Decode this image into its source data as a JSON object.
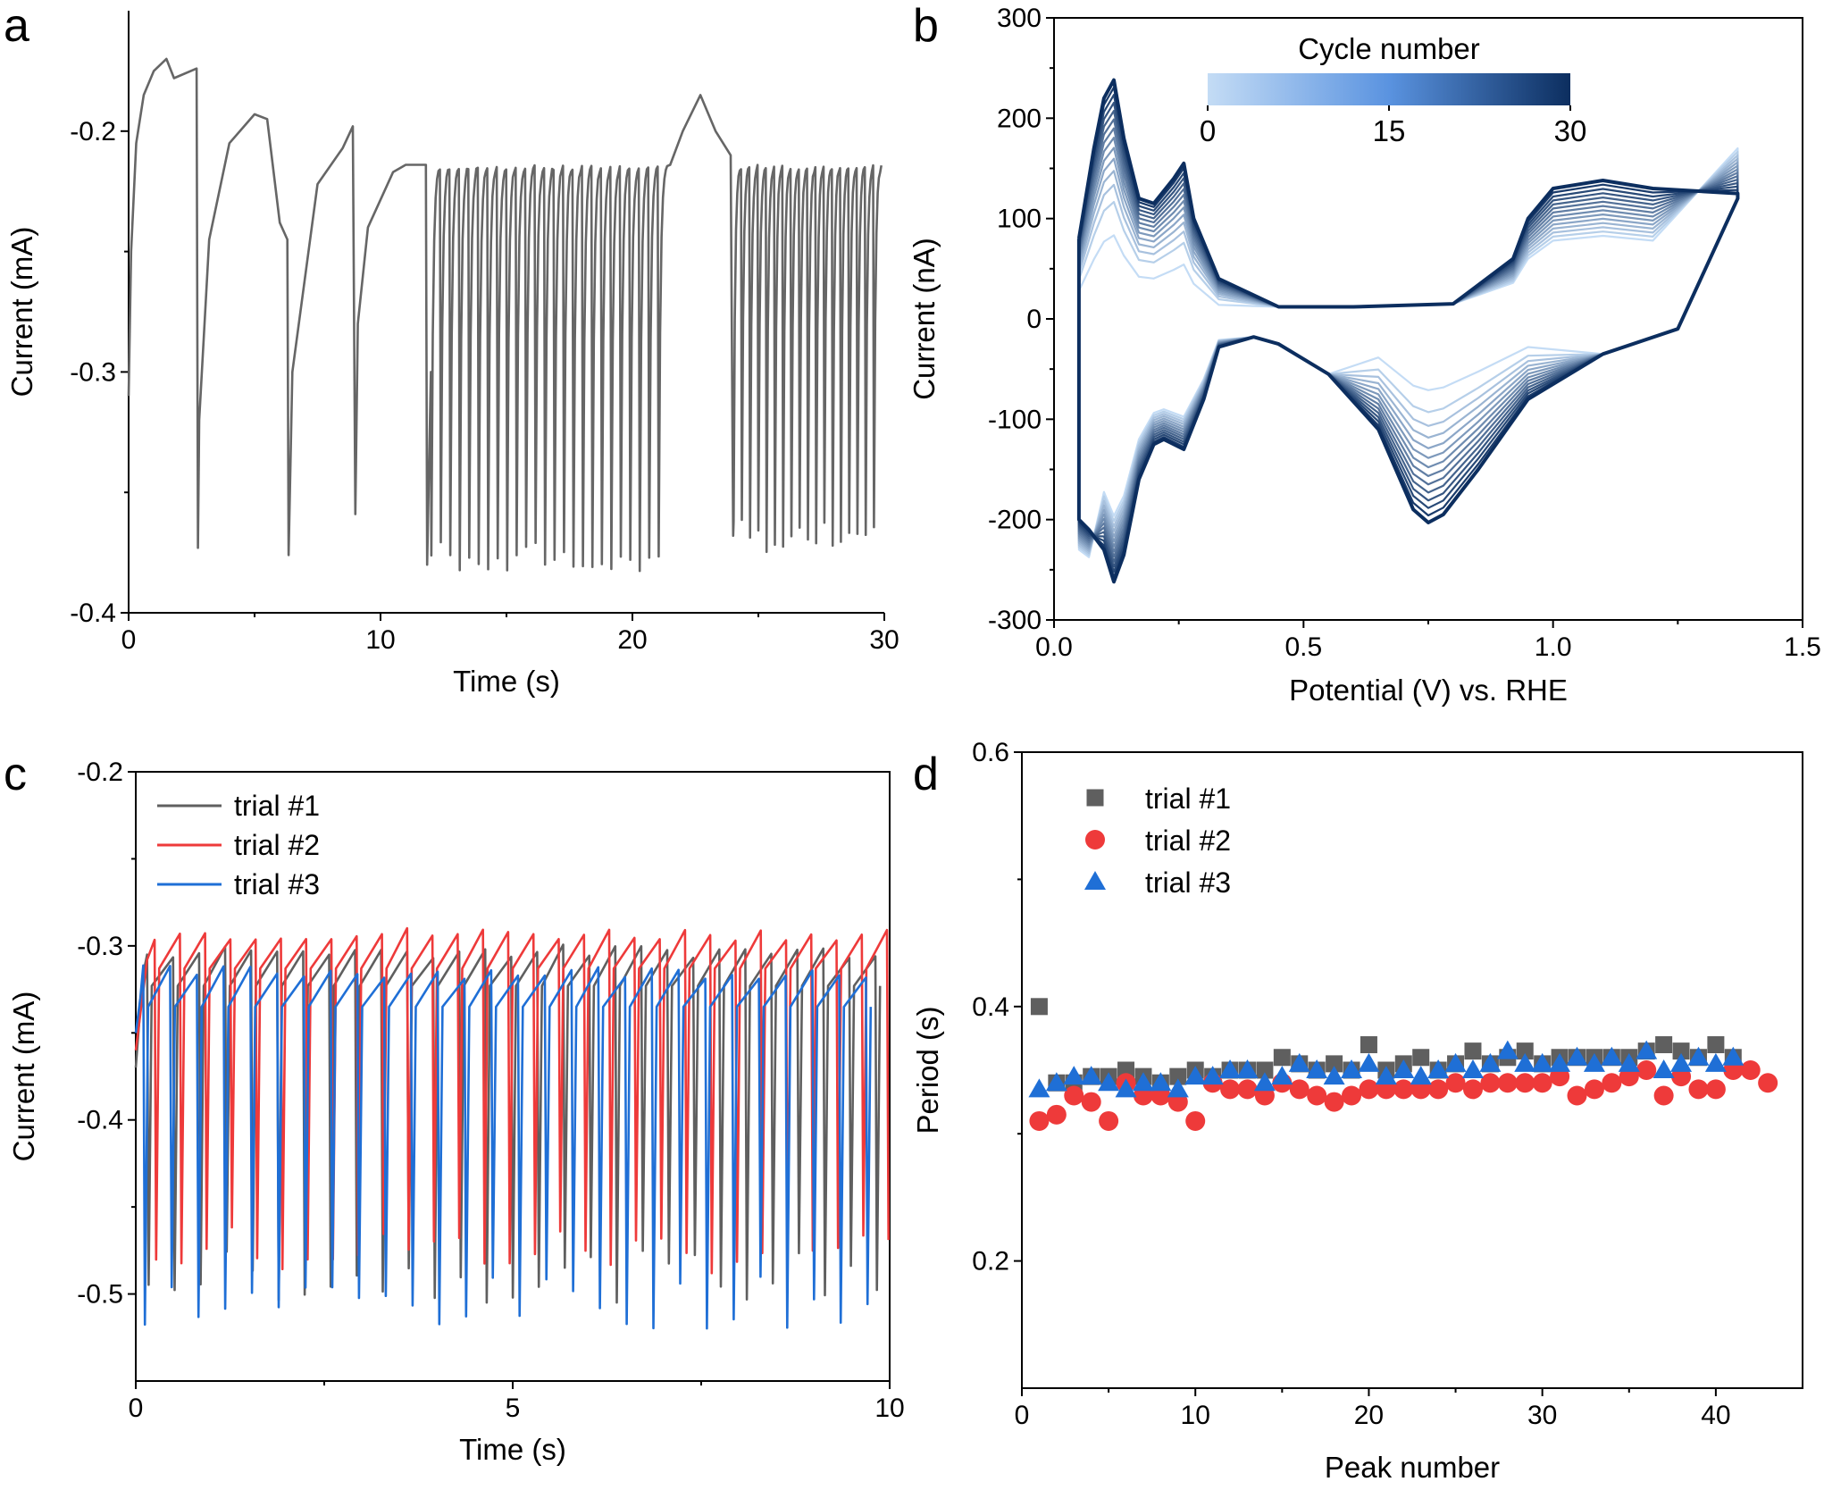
{
  "chart_data": [
    {
      "panel": "a",
      "type": "line",
      "xlabel": "Time (s)",
      "ylabel": "Current (mA)",
      "xlim": [
        0,
        30
      ],
      "ylim": [
        -0.4,
        -0.15
      ],
      "x_ticks": [
        0,
        10,
        20,
        30
      ],
      "y_ticks": [
        -0.2,
        -0.3,
        -0.4
      ],
      "x_tick_labels": [
        "0",
        "10",
        "20",
        "30"
      ],
      "y_tick_labels": [
        "-0.2",
        "-0.3",
        "-0.4"
      ],
      "series": [
        {
          "color": "#666666",
          "description": "current oscillation trace",
          "x": [
            0,
            0.1,
            0.3,
            0.6,
            1.0,
            1.5,
            1.8,
            2.7,
            2.75,
            2.8,
            3.2,
            4.0,
            5.0,
            5.5,
            6.0,
            6.3,
            6.35,
            6.5,
            7.5,
            8.5,
            8.9,
            9.0,
            9.1,
            9.5,
            10.5,
            11.0,
            11.8,
            11.85,
            12.0
          ],
          "y": [
            -0.31,
            -0.25,
            -0.205,
            -0.185,
            -0.175,
            -0.17,
            -0.178,
            -0.174,
            -0.373,
            -0.32,
            -0.245,
            -0.205,
            -0.193,
            -0.195,
            -0.238,
            -0.245,
            -0.376,
            -0.3,
            -0.222,
            -0.207,
            -0.198,
            -0.359,
            -0.28,
            -0.24,
            -0.217,
            -0.214,
            -0.214,
            -0.38,
            -0.3
          ],
          "oscillations": [
            {
              "start": 12.0,
              "end": 21.4,
              "count": 25,
              "top": -0.214,
              "bottom": -0.375
            },
            {
              "start": 24.0,
              "end": 29.9,
              "count": 18,
              "top": -0.214,
              "bottom": -0.367
            }
          ],
          "excursion": {
            "x": [
              21.5,
              22.0,
              22.7,
              23.3,
              23.9,
              24.0
            ],
            "y": [
              -0.214,
              -0.2,
              -0.185,
              -0.2,
              -0.21,
              -0.368
            ]
          }
        }
      ]
    },
    {
      "panel": "b",
      "type": "line",
      "xlabel": "Potential (V) vs. RHE",
      "ylabel": "Current (nA)",
      "xlim": [
        0,
        1.5
      ],
      "ylim": [
        -300,
        300
      ],
      "x_ticks": [
        0,
        0.5,
        1.0,
        1.5
      ],
      "y_ticks": [
        -300,
        -200,
        -100,
        0,
        100,
        200,
        300
      ],
      "x_tick_labels": [
        "0.0",
        "0.5",
        "1.0",
        "1.5"
      ],
      "y_tick_labels": [
        "-300",
        "-200",
        "-100",
        "0",
        "100",
        "200",
        "300"
      ],
      "colorbar": {
        "title": "Cycle number",
        "min": 0,
        "max": 30,
        "tick_labels": [
          "0",
          "15",
          "30"
        ],
        "color_start": "#c4dcf5",
        "color_end": "#0c2e5f"
      },
      "series": [
        {
          "name": "final cycle (30)",
          "anodic_x": [
            0.05,
            0.08,
            0.1,
            0.12,
            0.14,
            0.17,
            0.2,
            0.24,
            0.26,
            0.28,
            0.33,
            0.45,
            0.6,
            0.8,
            0.92,
            0.95,
            1.0,
            1.1,
            1.2,
            1.37
          ],
          "anodic_y": [
            80,
            170,
            220,
            238,
            180,
            120,
            115,
            140,
            155,
            100,
            40,
            12,
            12,
            15,
            60,
            100,
            130,
            138,
            130,
            125
          ],
          "cathodic_x": [
            1.37,
            1.25,
            1.1,
            0.95,
            0.85,
            0.78,
            0.75,
            0.72,
            0.65,
            0.55,
            0.45,
            0.4,
            0.33,
            0.3,
            0.26,
            0.22,
            0.2,
            0.17,
            0.14,
            0.12,
            0.1,
            0.07,
            0.05
          ],
          "cathodic_y": [
            120,
            -10,
            -35,
            -80,
            -150,
            -195,
            -203,
            -190,
            -110,
            -55,
            -25,
            -18,
            -28,
            -80,
            -130,
            -120,
            -125,
            -160,
            -235,
            -262,
            -230,
            -210,
            -200
          ]
        }
      ]
    },
    {
      "panel": "c",
      "type": "line",
      "xlabel": "Time (s)",
      "ylabel": "Current (mA)",
      "xlim": [
        0,
        10
      ],
      "ylim": [
        -0.55,
        -0.2
      ],
      "x_ticks": [
        0,
        5,
        10
      ],
      "y_ticks": [
        -0.2,
        -0.3,
        -0.4,
        -0.5
      ],
      "x_tick_labels": [
        "0",
        "5",
        "10"
      ],
      "y_tick_labels": [
        "-0.2",
        "-0.3",
        "-0.4",
        "-0.5"
      ],
      "series": [
        {
          "name": "trial #1",
          "color": "#5f5f5f",
          "start": 0.15,
          "period": 0.345,
          "top": -0.303,
          "bottom": -0.49
        },
        {
          "name": "trial #2",
          "color": "#ee3a3a",
          "start": 0.25,
          "period": 0.335,
          "top": -0.293,
          "bottom": -0.475
        },
        {
          "name": "trial #3",
          "color": "#1f6fd6",
          "start": 0.1,
          "period": 0.355,
          "top": -0.315,
          "bottom": -0.505
        }
      ]
    },
    {
      "panel": "d",
      "type": "scatter",
      "xlabel": "Peak number",
      "ylabel": "Period (s)",
      "xlim": [
        0,
        45
      ],
      "ylim": [
        0.1,
        0.6
      ],
      "x_ticks": [
        0,
        10,
        20,
        30,
        40
      ],
      "y_ticks": [
        0.2,
        0.4,
        0.6
      ],
      "x_tick_labels": [
        "0",
        "10",
        "20",
        "30",
        "40"
      ],
      "y_tick_labels": [
        "0.2",
        "0.4",
        "0.6"
      ],
      "series": [
        {
          "name": "trial #1",
          "color": "#5f5f5f",
          "marker": "square",
          "x": [
            1,
            2,
            3,
            4,
            5,
            6,
            7,
            8,
            9,
            10,
            11,
            12,
            13,
            14,
            15,
            16,
            17,
            18,
            19,
            20,
            21,
            22,
            23,
            24,
            25,
            26,
            27,
            28,
            29,
            30,
            31,
            32,
            33,
            34,
            35,
            36,
            37,
            38,
            39,
            40,
            41
          ],
          "y": [
            0.4,
            0.34,
            0.34,
            0.345,
            0.345,
            0.35,
            0.345,
            0.34,
            0.345,
            0.35,
            0.345,
            0.35,
            0.35,
            0.35,
            0.36,
            0.355,
            0.35,
            0.355,
            0.35,
            0.37,
            0.35,
            0.355,
            0.36,
            0.35,
            0.355,
            0.365,
            0.355,
            0.36,
            0.365,
            0.355,
            0.36,
            0.36,
            0.36,
            0.36,
            0.36,
            0.365,
            0.37,
            0.365,
            0.36,
            0.37,
            0.36
          ]
        },
        {
          "name": "trial #2",
          "color": "#ee3a3a",
          "marker": "circle",
          "x": [
            1,
            2,
            3,
            4,
            5,
            6,
            7,
            8,
            9,
            10,
            11,
            12,
            13,
            14,
            15,
            16,
            17,
            18,
            19,
            20,
            21,
            22,
            23,
            24,
            25,
            26,
            27,
            28,
            29,
            30,
            31,
            32,
            33,
            34,
            35,
            36,
            37,
            38,
            39,
            40,
            41,
            42,
            43
          ],
          "y": [
            0.31,
            0.315,
            0.33,
            0.325,
            0.31,
            0.34,
            0.33,
            0.33,
            0.325,
            0.31,
            0.34,
            0.335,
            0.335,
            0.33,
            0.34,
            0.335,
            0.33,
            0.325,
            0.33,
            0.335,
            0.335,
            0.335,
            0.335,
            0.335,
            0.34,
            0.335,
            0.34,
            0.34,
            0.34,
            0.34,
            0.345,
            0.33,
            0.335,
            0.34,
            0.345,
            0.35,
            0.33,
            0.345,
            0.335,
            0.335,
            0.35,
            0.35,
            0.34
          ]
        },
        {
          "name": "trial #3",
          "color": "#1f6fd6",
          "marker": "triangle",
          "x": [
            1,
            2,
            3,
            4,
            5,
            6,
            7,
            8,
            9,
            10,
            11,
            12,
            13,
            14,
            15,
            16,
            17,
            18,
            19,
            20,
            21,
            22,
            23,
            24,
            25,
            26,
            27,
            28,
            29,
            30,
            31,
            32,
            33,
            34,
            35,
            36,
            37,
            38,
            39,
            40,
            41
          ],
          "y": [
            0.335,
            0.34,
            0.345,
            0.345,
            0.34,
            0.335,
            0.34,
            0.34,
            0.335,
            0.345,
            0.345,
            0.35,
            0.35,
            0.34,
            0.345,
            0.355,
            0.35,
            0.345,
            0.35,
            0.355,
            0.345,
            0.35,
            0.345,
            0.35,
            0.355,
            0.35,
            0.355,
            0.365,
            0.355,
            0.355,
            0.355,
            0.36,
            0.355,
            0.36,
            0.355,
            0.365,
            0.35,
            0.355,
            0.36,
            0.355,
            0.36
          ]
        }
      ]
    }
  ],
  "panel_letters": {
    "a": "a",
    "b": "b",
    "c": "c",
    "d": "d"
  }
}
